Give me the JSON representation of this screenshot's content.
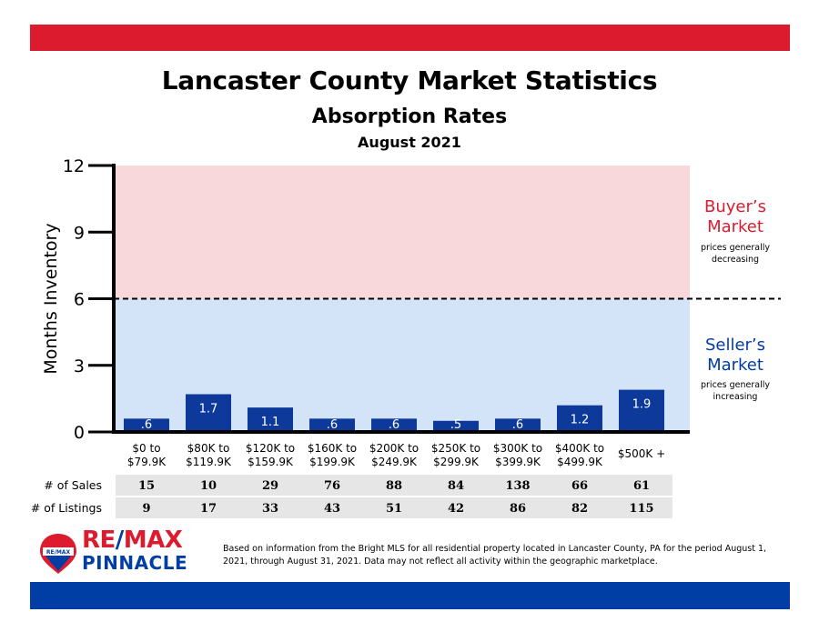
{
  "header": {
    "title": "Lancaster County Market Statistics",
    "subtitle": "Absorption Rates",
    "period": "August 2021"
  },
  "colors": {
    "brand_red": "#dc1c2e",
    "brand_blue": "#003da5",
    "bar_blue": "#0d3a9a",
    "buyer_zone": "#f9d8dc",
    "seller_zone": "#d3e3f8",
    "table_row": "#e6e6e6"
  },
  "chart_data": {
    "type": "bar",
    "ylabel": "Months Inventory",
    "ylim": [
      0,
      12
    ],
    "yticks": [
      "0",
      "3",
      "6",
      "9",
      "12"
    ],
    "threshold": 6,
    "categories": [
      [
        "$0 to",
        "$79.9K"
      ],
      [
        "$80K to",
        "$119.9K"
      ],
      [
        "$120K to",
        "$159.9K"
      ],
      [
        "$160K to",
        "$199.9K"
      ],
      [
        "$200K to",
        "$249.9K"
      ],
      [
        "$250K to",
        "$299.9K"
      ],
      [
        "$300K to",
        "$399.9K"
      ],
      [
        "$400K to",
        "$499.9K"
      ],
      [
        "$500K +"
      ]
    ],
    "values": [
      0.6,
      1.7,
      1.1,
      0.6,
      0.6,
      0.5,
      0.6,
      1.2,
      1.9
    ],
    "data_labels": [
      ".6",
      "1.7",
      "1.1",
      ".6",
      ".6",
      ".5",
      ".6",
      "1.2",
      "1.9"
    ],
    "zones": {
      "buyer": {
        "title": [
          "Buyer’s",
          "Market"
        ],
        "note": [
          "prices generally",
          "decreasing"
        ]
      },
      "seller": {
        "title": [
          "Seller’s",
          "Market"
        ],
        "note": [
          "prices generally",
          "increasing"
        ]
      }
    }
  },
  "table": {
    "rows": [
      {
        "label": "# of Sales",
        "values": [
          "15",
          "10",
          "29",
          "76",
          "88",
          "84",
          "138",
          "66",
          "61"
        ]
      },
      {
        "label": "# of Listings",
        "values": [
          "9",
          "17",
          "33",
          "43",
          "51",
          "42",
          "86",
          "82",
          "115"
        ]
      }
    ]
  },
  "logo": {
    "brand_left": "RE",
    "brand_slash": "/",
    "brand_right": "MAX",
    "office": "PINNACLE",
    "balloon_text": "RE/MAX"
  },
  "footer": {
    "disclaimer": "Based on information from the Bright MLS for all residential property located in Lancaster County, PA for the period August 1, 2021, through August 31, 2021.  Data may not reflect all activity within the geographic marketplace."
  }
}
